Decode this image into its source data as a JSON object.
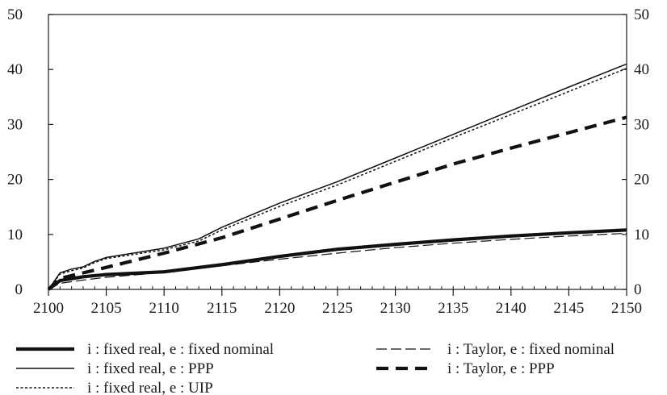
{
  "chart_data": {
    "type": "line",
    "title": "",
    "xlabel": "",
    "ylabel": "",
    "xlim": [
      2100,
      2150
    ],
    "ylim": [
      0,
      50
    ],
    "x_ticks": [
      2100,
      2105,
      2110,
      2115,
      2120,
      2125,
      2130,
      2135,
      2140,
      2145,
      2150
    ],
    "y_ticks": [
      0,
      10,
      20,
      30,
      40,
      50
    ],
    "grid": false,
    "legend_position": "bottom",
    "series": [
      {
        "name": "i : fixed real, e : fixed nominal",
        "style": "thick-solid",
        "x": [
          2100,
          2101,
          2103,
          2105,
          2110,
          2115,
          2120,
          2125,
          2130,
          2135,
          2140,
          2145,
          2150
        ],
        "y": [
          0,
          1.6,
          2.3,
          2.7,
          3.2,
          4.5,
          6.0,
          7.3,
          8.2,
          9.0,
          9.7,
          10.3,
          10.8
        ]
      },
      {
        "name": "i : fixed real, e : PPP",
        "style": "thin-solid",
        "x": [
          2100,
          2101,
          2102,
          2103,
          2104,
          2105,
          2110,
          2113,
          2115,
          2120,
          2125,
          2130,
          2135,
          2140,
          2145,
          2150
        ],
        "y": [
          0,
          3.0,
          3.7,
          4.1,
          5.1,
          5.8,
          7.5,
          9.2,
          11.3,
          15.7,
          19.6,
          23.9,
          28.2,
          32.5,
          36.8,
          41.0
        ]
      },
      {
        "name": "i : fixed real, e : UIP",
        "style": "dotted",
        "x": [
          2100,
          2101,
          2102,
          2103,
          2104,
          2105,
          2110,
          2113,
          2115,
          2120,
          2125,
          2130,
          2135,
          2140,
          2145,
          2150
        ],
        "y": [
          0,
          2.8,
          3.4,
          3.9,
          4.9,
          5.6,
          7.2,
          8.8,
          10.8,
          15.1,
          19.0,
          23.3,
          27.6,
          31.8,
          36.0,
          40.2
        ]
      },
      {
        "name": "i : Taylor, e : fixed nominal",
        "style": "thin-dash",
        "x": [
          2100,
          2101,
          2103,
          2105,
          2110,
          2115,
          2120,
          2125,
          2130,
          2135,
          2140,
          2145,
          2150
        ],
        "y": [
          0,
          1.1,
          1.7,
          2.2,
          3.1,
          4.3,
          5.5,
          6.6,
          7.6,
          8.4,
          9.1,
          9.7,
          10.2
        ]
      },
      {
        "name": "i : Taylor, e : PPP",
        "style": "thick-dash",
        "x": [
          2100,
          2101,
          2102,
          2103,
          2105,
          2110,
          2115,
          2120,
          2125,
          2130,
          2135,
          2140,
          2145,
          2150
        ],
        "y": [
          0,
          2.0,
          2.5,
          3.0,
          4.0,
          6.6,
          9.4,
          12.8,
          16.2,
          19.5,
          22.8,
          25.7,
          28.5,
          31.3
        ]
      }
    ]
  }
}
